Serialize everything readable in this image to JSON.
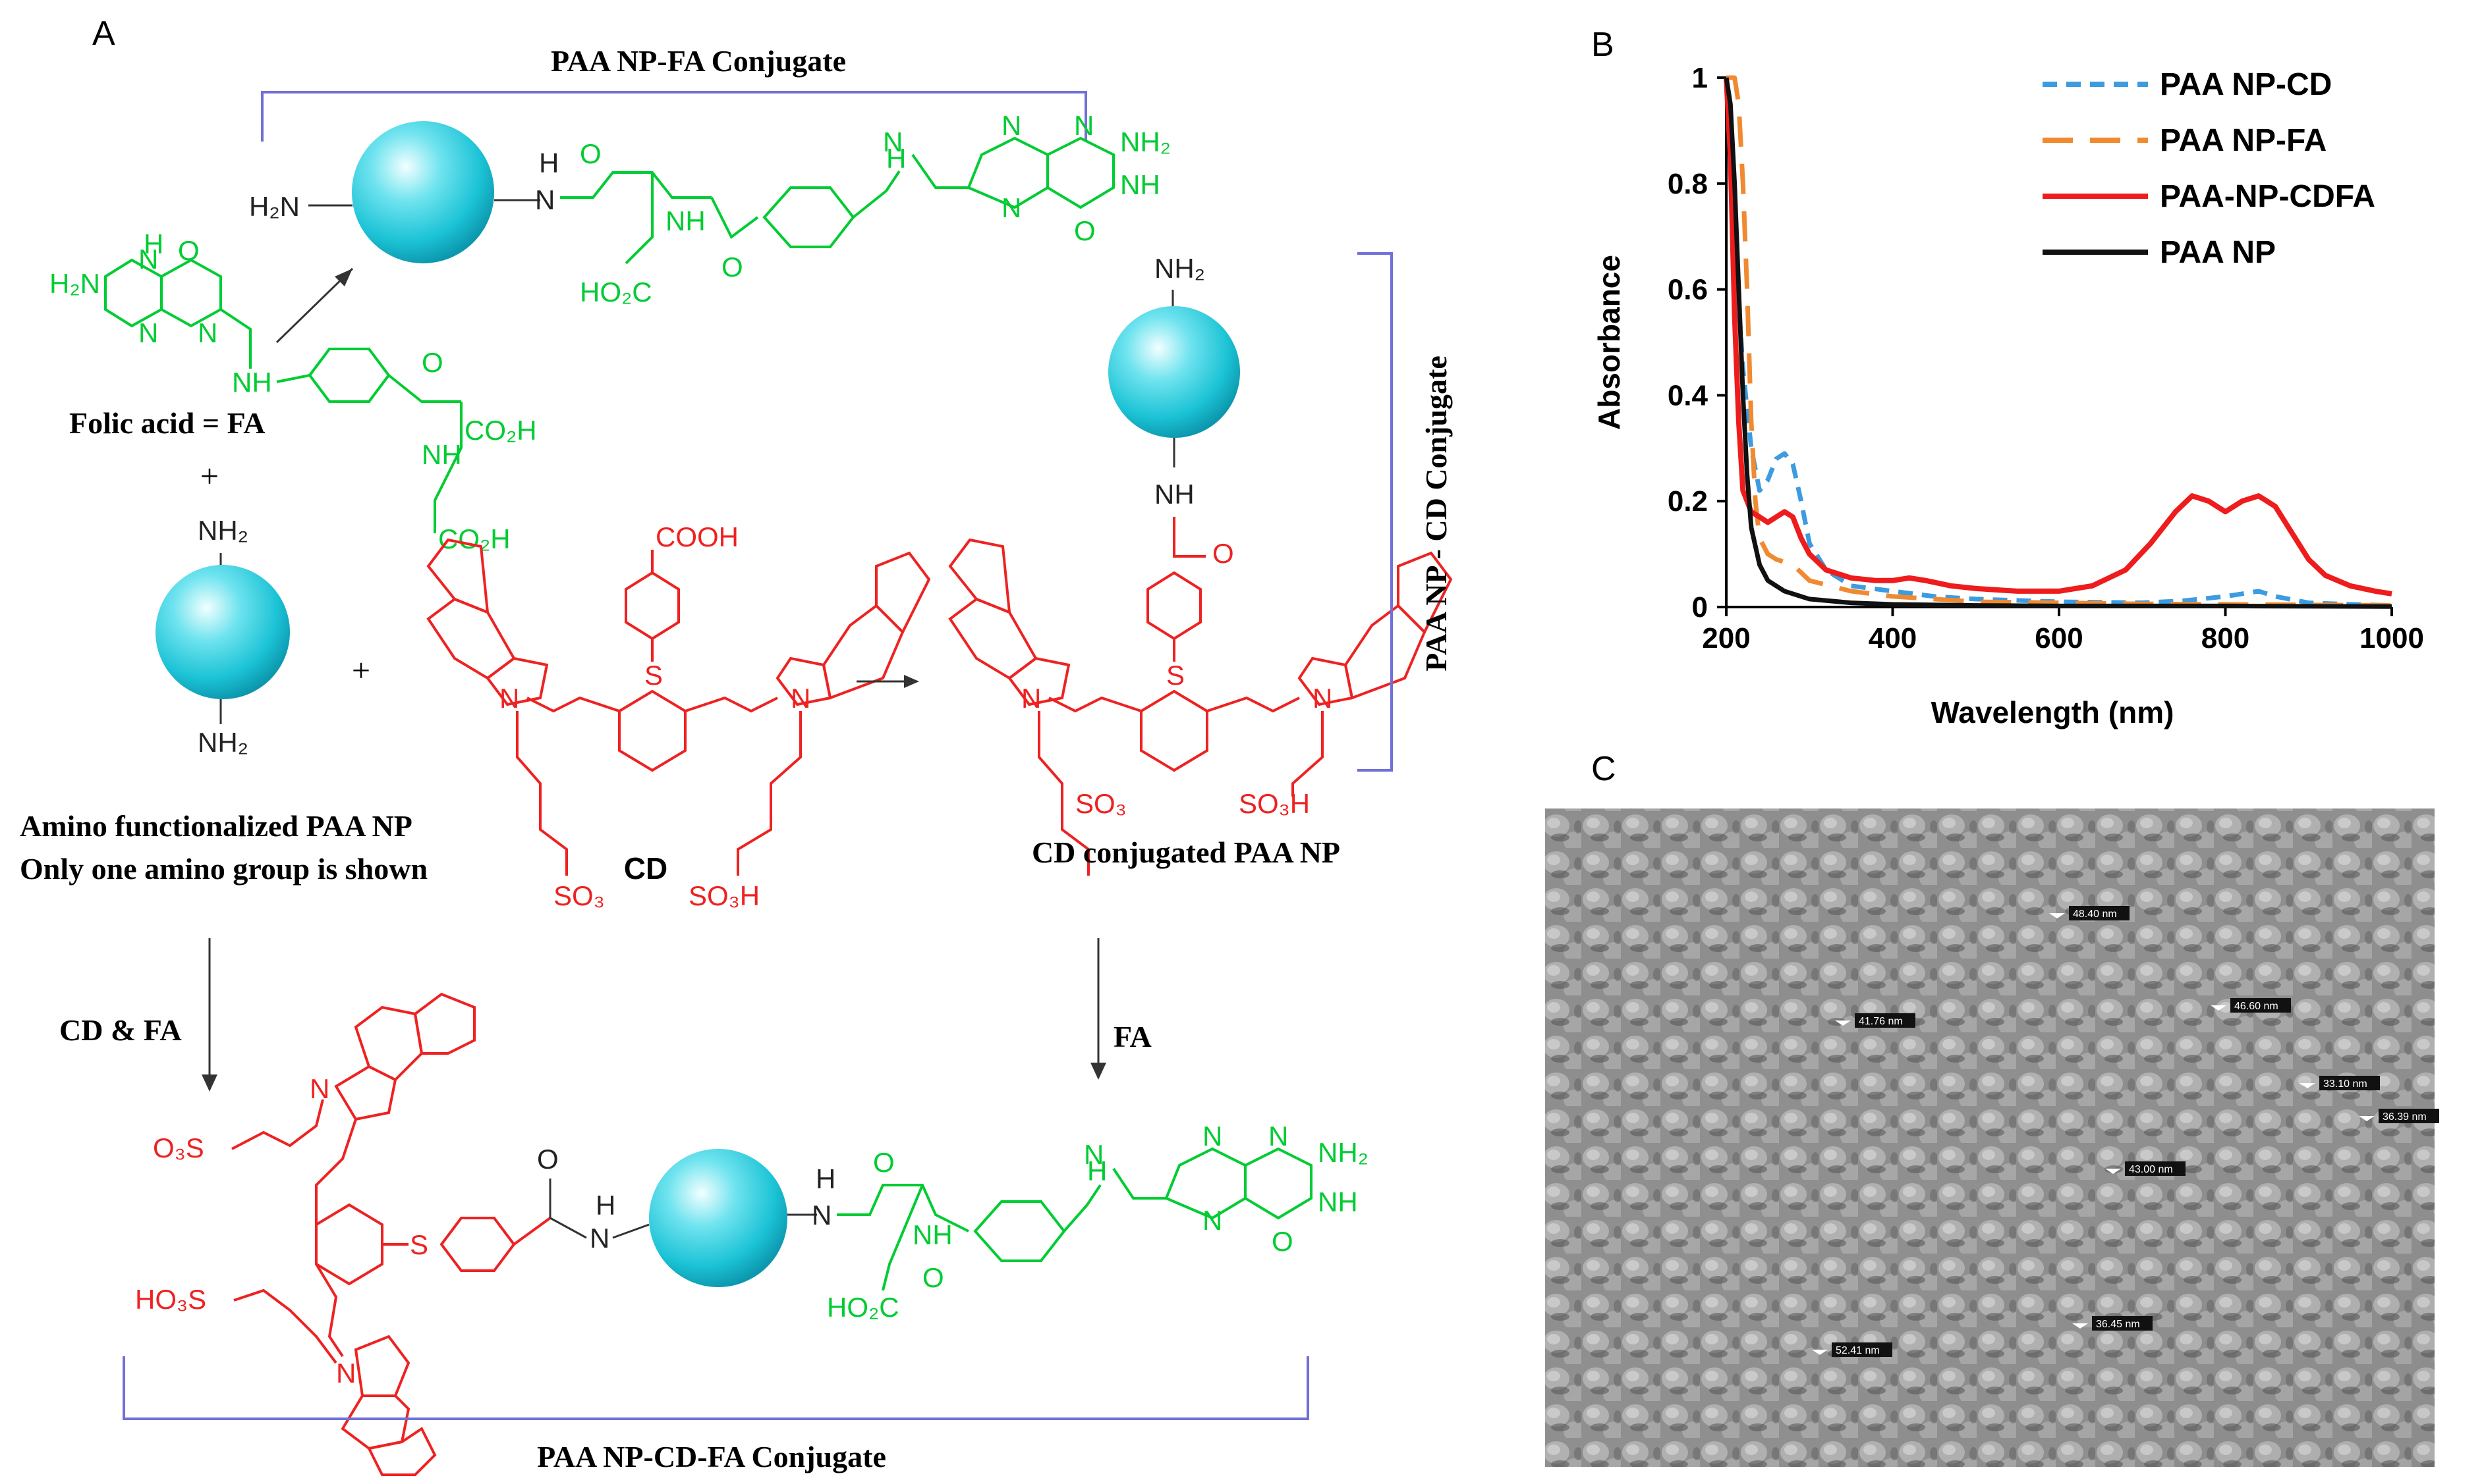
{
  "panel_a": {
    "letter": "A",
    "label_top": "PAA NP-FA Conjugate",
    "label_cd_conj": "PAA NP - CD Conjugate",
    "label_bottom": "PAA NP-CD-FA Conjugate",
    "folic_acid": "Folic acid = FA",
    "amino_line1": "Amino functionalized PAA NP",
    "amino_line2": "Only one amino group is shown",
    "cd": "CD",
    "cd_conjugated": "CD conjugated PAA NP",
    "arrow_cd_fa": "CD & FA",
    "arrow_fa": "FA",
    "plus": "+",
    "atoms": {
      "h2n": "H₂N",
      "nh2": "NH₂",
      "nh": "NH",
      "h": "H",
      "n": "N",
      "o": "O",
      "ho2c": "HO₂C",
      "co2h": "CO₂H",
      "cooh": "COOH",
      "so3": "SO₃",
      "so3h": "SO₃H",
      "o3s": "O₃S",
      "ho3s": "HO₃S",
      "s": "S",
      "h2n_green": "H₂N"
    }
  },
  "panel_b": {
    "letter": "B"
  },
  "panel_c": {
    "letter": "C",
    "measurements": [
      "48.40 nm",
      "41.76 nm",
      "46.60 nm",
      "33.10 nm",
      "36.39 nm",
      "43.00 nm",
      "36.45 nm",
      "52.41 nm"
    ]
  },
  "chart_data": {
    "type": "line",
    "xlabel": "Wavelength (nm)",
    "ylabel": "Absorbance",
    "xlim": [
      200,
      1000
    ],
    "ylim": [
      0,
      1
    ],
    "xticks": [
      200,
      400,
      600,
      800,
      1000
    ],
    "yticks": [
      0,
      0.2,
      0.4,
      0.6,
      0.8,
      1
    ],
    "ytick_labels": [
      "0",
      "0.2",
      "0.4",
      "0.6",
      "0.8",
      "1"
    ],
    "legend_position": "top-right",
    "grid": false,
    "series": [
      {
        "name": "PAA NP-CD",
        "color": "#3d9be0",
        "dash": "dotted",
        "points": [
          [
            200,
            1.0
          ],
          [
            205,
            0.9
          ],
          [
            210,
            0.7
          ],
          [
            220,
            0.45
          ],
          [
            230,
            0.3
          ],
          [
            240,
            0.22
          ],
          [
            250,
            0.24
          ],
          [
            260,
            0.28
          ],
          [
            270,
            0.29
          ],
          [
            280,
            0.27
          ],
          [
            290,
            0.2
          ],
          [
            300,
            0.12
          ],
          [
            320,
            0.07
          ],
          [
            350,
            0.04
          ],
          [
            400,
            0.03
          ],
          [
            450,
            0.02
          ],
          [
            500,
            0.015
          ],
          [
            600,
            0.01
          ],
          [
            700,
            0.008
          ],
          [
            750,
            0.012
          ],
          [
            800,
            0.02
          ],
          [
            820,
            0.025
          ],
          [
            840,
            0.03
          ],
          [
            860,
            0.02
          ],
          [
            900,
            0.008
          ],
          [
            950,
            0.005
          ],
          [
            1000,
            0.003
          ]
        ]
      },
      {
        "name": "PAA NP-FA",
        "color": "#f08a30",
        "dash": "dashed",
        "points": [
          [
            200,
            1.0
          ],
          [
            210,
            1.0
          ],
          [
            215,
            0.95
          ],
          [
            220,
            0.8
          ],
          [
            225,
            0.6
          ],
          [
            230,
            0.35
          ],
          [
            235,
            0.2
          ],
          [
            240,
            0.13
          ],
          [
            250,
            0.1
          ],
          [
            260,
            0.09
          ],
          [
            270,
            0.085
          ],
          [
            280,
            0.08
          ],
          [
            290,
            0.065
          ],
          [
            300,
            0.05
          ],
          [
            350,
            0.03
          ],
          [
            400,
            0.02
          ],
          [
            450,
            0.015
          ],
          [
            500,
            0.01
          ],
          [
            600,
            0.008
          ],
          [
            700,
            0.006
          ],
          [
            800,
            0.005
          ],
          [
            900,
            0.004
          ],
          [
            1000,
            0.003
          ]
        ]
      },
      {
        "name": "PAA-NP-CDFA",
        "color": "#ee1c1c",
        "dash": "solid",
        "points": [
          [
            200,
            1.0
          ],
          [
            205,
            0.85
          ],
          [
            210,
            0.55
          ],
          [
            215,
            0.35
          ],
          [
            220,
            0.22
          ],
          [
            230,
            0.18
          ],
          [
            240,
            0.17
          ],
          [
            250,
            0.16
          ],
          [
            260,
            0.17
          ],
          [
            270,
            0.18
          ],
          [
            280,
            0.17
          ],
          [
            290,
            0.13
          ],
          [
            300,
            0.1
          ],
          [
            320,
            0.07
          ],
          [
            350,
            0.055
          ],
          [
            380,
            0.05
          ],
          [
            400,
            0.05
          ],
          [
            420,
            0.055
          ],
          [
            440,
            0.05
          ],
          [
            470,
            0.04
          ],
          [
            500,
            0.035
          ],
          [
            550,
            0.03
          ],
          [
            600,
            0.03
          ],
          [
            640,
            0.04
          ],
          [
            680,
            0.07
          ],
          [
            710,
            0.12
          ],
          [
            740,
            0.18
          ],
          [
            760,
            0.21
          ],
          [
            780,
            0.2
          ],
          [
            800,
            0.18
          ],
          [
            820,
            0.2
          ],
          [
            840,
            0.21
          ],
          [
            860,
            0.19
          ],
          [
            880,
            0.14
          ],
          [
            900,
            0.09
          ],
          [
            920,
            0.06
          ],
          [
            950,
            0.04
          ],
          [
            980,
            0.03
          ],
          [
            1000,
            0.025
          ]
        ]
      },
      {
        "name": "PAA NP",
        "color": "#111111",
        "dash": "solid",
        "points": [
          [
            200,
            1.0
          ],
          [
            205,
            0.95
          ],
          [
            210,
            0.8
          ],
          [
            215,
            0.6
          ],
          [
            220,
            0.4
          ],
          [
            225,
            0.25
          ],
          [
            230,
            0.15
          ],
          [
            240,
            0.08
          ],
          [
            250,
            0.05
          ],
          [
            270,
            0.03
          ],
          [
            300,
            0.015
          ],
          [
            350,
            0.008
          ],
          [
            400,
            0.005
          ],
          [
            500,
            0.003
          ],
          [
            600,
            0.002
          ],
          [
            800,
            0.002
          ],
          [
            1000,
            0.001
          ]
        ]
      }
    ]
  }
}
